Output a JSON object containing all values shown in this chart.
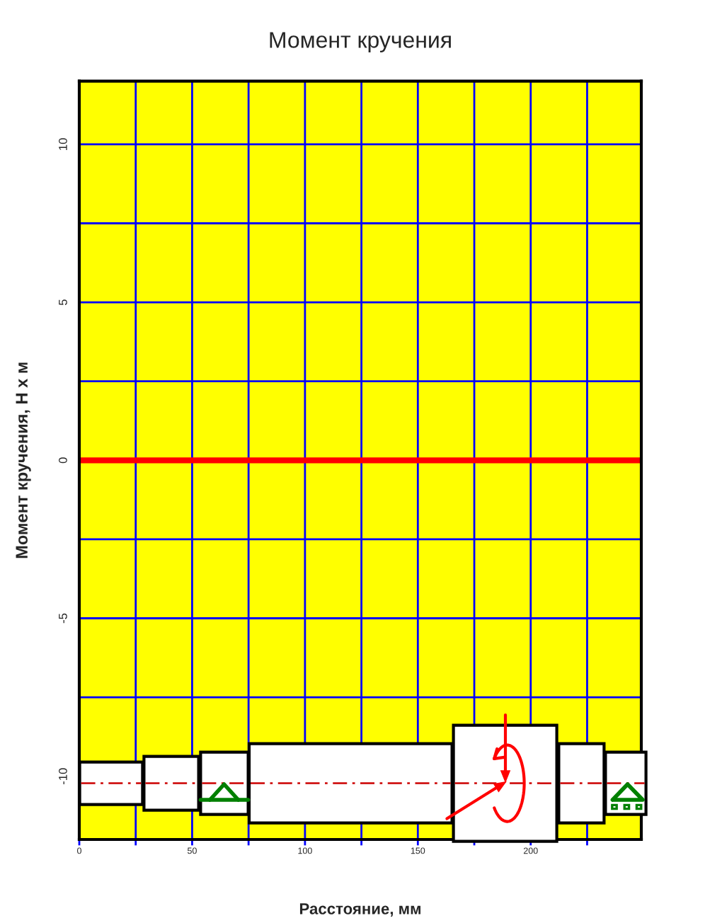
{
  "chart_data": {
    "type": "line",
    "title": "Момент кручения",
    "xlabel": "Расстояние, мм",
    "ylabel": "Момент кручения, Н х м",
    "series": [
      {
        "x": [
          0,
          249
        ],
        "values": [
          0,
          0
        ],
        "color": "#ff0000",
        "line_style": "solid"
      }
    ],
    "xlim": [
      0,
      249
    ],
    "xticks": [
      0,
      {
        "value": 25,
        "label": null
      },
      50,
      {
        "value": 75,
        "label": null
      },
      100,
      {
        "value": 125,
        "label": null
      },
      150,
      {
        "value": 175,
        "label": null
      },
      200,
      {
        "value": 225,
        "label": null
      }
    ],
    "ylim": [
      -12,
      12
    ],
    "yticks": [
      -10,
      {
        "value": -7.5,
        "label": null
      },
      -5,
      {
        "value": -2.5,
        "label": null
      },
      0,
      {
        "value": 2.5,
        "label": null
      },
      5,
      {
        "value": 7.5,
        "label": null
      },
      10
    ],
    "grid": true
  }
}
